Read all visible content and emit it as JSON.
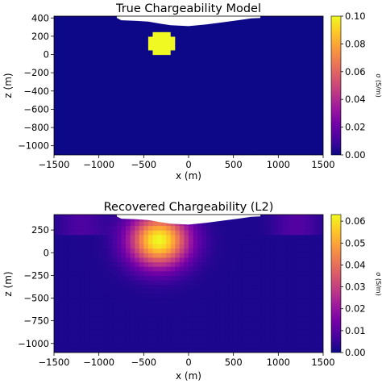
{
  "chart_data": [
    {
      "type": "heatmap",
      "title": "True Chargeability Model",
      "xlabel": "x (m)",
      "ylabel": "z (m)",
      "xlim": [
        -1500,
        1500
      ],
      "ylim": [
        -1100,
        420
      ],
      "xticks": [
        "−1500",
        "−1000",
        "−500",
        "0",
        "500",
        "1000",
        "1500"
      ],
      "yticks": [
        "400",
        "200",
        "0",
        "−200",
        "−400",
        "−600",
        "−800",
        "−1000"
      ],
      "colorbar": {
        "label": "σ (S/m)",
        "range": [
          0,
          0.1
        ],
        "ticks": [
          "0.00",
          "0.02",
          "0.04",
          "0.06",
          "0.08",
          "0.10"
        ],
        "colormap": "plasma"
      },
      "anomaly": {
        "center_x": -300,
        "center_z": 125,
        "radius": 150,
        "value": 0.1
      },
      "background_value": 0.0,
      "topography": [
        [
          -800,
          400
        ],
        [
          -750,
          375
        ],
        [
          -600,
          370
        ],
        [
          -450,
          360
        ],
        [
          -300,
          335
        ],
        [
          -200,
          320
        ],
        [
          0,
          310
        ],
        [
          200,
          330
        ],
        [
          400,
          355
        ],
        [
          550,
          375
        ],
        [
          700,
          395
        ],
        [
          800,
          400
        ]
      ]
    },
    {
      "type": "heatmap",
      "title": "Recovered Chargeability (L2)",
      "xlabel": "x (m)",
      "ylabel": "z (m)",
      "xlim": [
        -1500,
        1500
      ],
      "ylim": [
        -1100,
        420
      ],
      "xticks": [
        "−1500",
        "−1000",
        "−500",
        "0",
        "500",
        "1000",
        "1500"
      ],
      "yticks": [
        "250",
        "0",
        "−250",
        "−500",
        "−750",
        "−1000"
      ],
      "colorbar": {
        "label": "σ (S/m)",
        "range": [
          0,
          0.063
        ],
        "ticks": [
          "0.00",
          "0.01",
          "0.02",
          "0.03",
          "0.04",
          "0.05",
          "0.06"
        ],
        "colormap": "plasma"
      },
      "blob": {
        "center_x": -330,
        "center_z": 140,
        "peak": 0.063,
        "sigma_x": 230,
        "sigma_z": 200
      },
      "background_value": 0.002,
      "topography": [
        [
          -800,
          400
        ],
        [
          -750,
          375
        ],
        [
          -600,
          370
        ],
        [
          -450,
          360
        ],
        [
          -300,
          335
        ],
        [
          -200,
          320
        ],
        [
          0,
          310
        ],
        [
          200,
          330
        ],
        [
          400,
          355
        ],
        [
          550,
          375
        ],
        [
          700,
          395
        ],
        [
          800,
          400
        ]
      ]
    }
  ],
  "colors": {
    "plasma_stops": [
      "#0d0887",
      "#46039f",
      "#7201a8",
      "#9c179e",
      "#bd3786",
      "#d8576b",
      "#ed7953",
      "#fb9f3a",
      "#fdca26",
      "#f0f921"
    ]
  }
}
